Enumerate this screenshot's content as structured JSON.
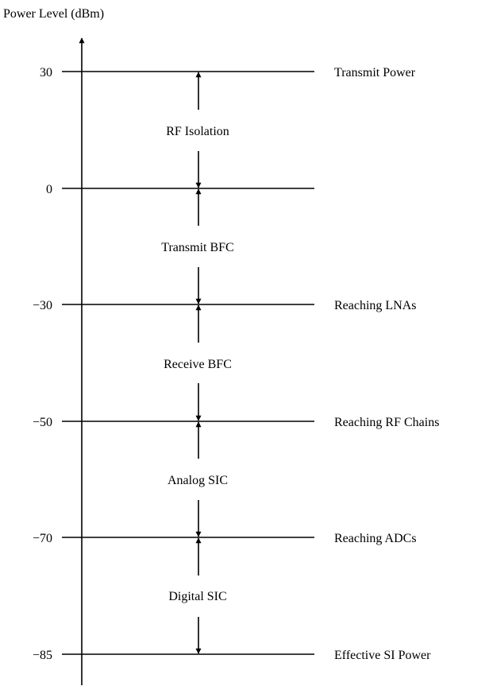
{
  "axis_label": "Power Level (dBm)",
  "levels": [
    {
      "value": "30",
      "label": "Transmit Power"
    },
    {
      "value": "0",
      "label": ""
    },
    {
      "value": "−30",
      "label": "Reaching LNAs"
    },
    {
      "value": "−50",
      "label": "Reaching RF Chains"
    },
    {
      "value": "−70",
      "label": "Reaching ADCs"
    },
    {
      "value": "−85",
      "label": "Effective SI Power"
    }
  ],
  "stages": [
    {
      "label": "RF Isolation"
    },
    {
      "label": "Transmit BFC"
    },
    {
      "label": "Receive BFC"
    },
    {
      "label": "Analog SIC"
    },
    {
      "label": "Digital SIC"
    }
  ],
  "colors": {
    "line": "#000000",
    "background": "#ffffff"
  }
}
